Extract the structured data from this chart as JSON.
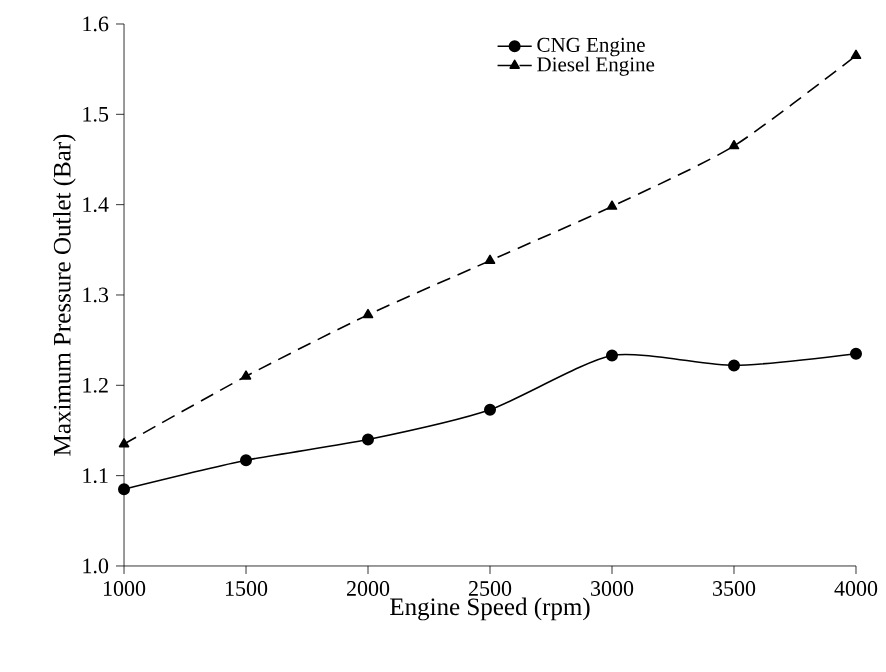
{
  "chart_data": {
    "type": "line",
    "xlabel": "Engine Speed (rpm)",
    "ylabel": "Maximum Pressure Outlet (Bar)",
    "x": [
      1000,
      1500,
      2000,
      2500,
      3000,
      3500,
      4000
    ],
    "series": [
      {
        "name": "CNG Engine",
        "color": "#000000",
        "marker": "circle",
        "line_style": "solid",
        "values": [
          1.085,
          1.117,
          1.14,
          1.173,
          1.233,
          1.222,
          1.235
        ]
      },
      {
        "name": "Diesel Engine",
        "color": "#000000",
        "marker": "triangle",
        "line_style": "dashed",
        "values": [
          1.135,
          1.21,
          1.278,
          1.338,
          1.398,
          1.465,
          1.565
        ]
      }
    ],
    "xlim": [
      1000,
      4000
    ],
    "xticks": [
      1000,
      1500,
      2000,
      2500,
      3000,
      3500,
      4000
    ],
    "ylim": [
      1.0,
      1.6
    ],
    "yticks": [
      {
        "value": 1.0,
        "label": "1.0"
      },
      {
        "value": 1.1,
        "label": "1.1"
      },
      {
        "value": 1.2,
        "label": "1.2"
      },
      {
        "value": 1.3,
        "label": "1.3"
      },
      {
        "value": 1.4,
        "label": "1.4"
      },
      {
        "value": 1.5,
        "label": "1.5"
      },
      {
        "value": 1.6,
        "label": "1.6"
      }
    ],
    "grid": false,
    "legend": "top"
  }
}
